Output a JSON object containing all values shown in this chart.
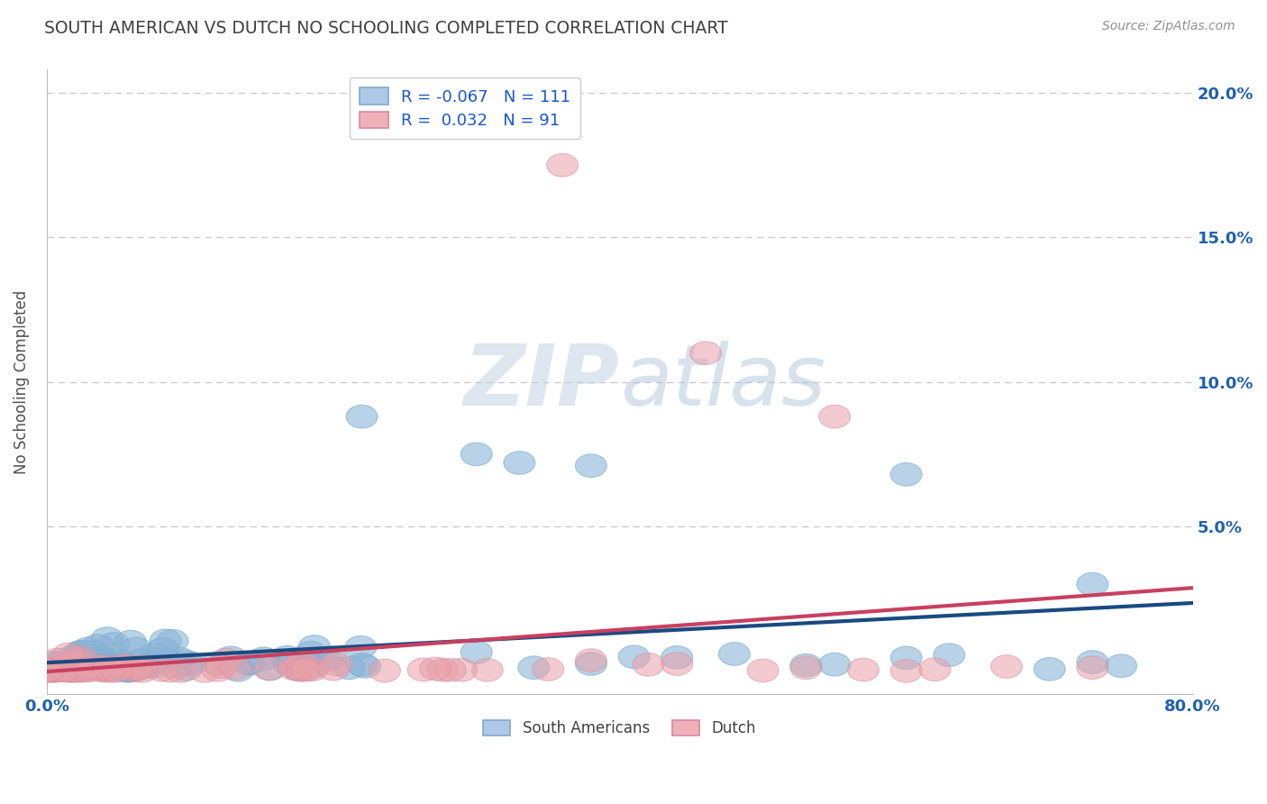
{
  "title": "SOUTH AMERICAN VS DUTCH NO SCHOOLING COMPLETED CORRELATION CHART",
  "source": "Source: ZipAtlas.com",
  "ylabel": "No Schooling Completed",
  "xlim": [
    0.0,
    0.8
  ],
  "ylim": [
    -0.008,
    0.208
  ],
  "yticks": [
    0.0,
    0.05,
    0.1,
    0.15,
    0.2
  ],
  "ytick_labels": [
    "",
    "5.0%",
    "10.0%",
    "15.0%",
    "20.0%"
  ],
  "xticks": [
    0.0,
    0.8
  ],
  "xtick_labels": [
    "0.0%",
    "80.0%"
  ],
  "series_blue": {
    "label": "South Americans",
    "R": -0.067,
    "N": 111,
    "color": "#8ab4d8",
    "edge_color": "#7aabc8",
    "trend_color": "#1a4a80"
  },
  "series_pink": {
    "label": "Dutch",
    "R": 0.032,
    "N": 91,
    "color": "#e8a0a8",
    "edge_color": "#d890a0",
    "trend_color": "#c84060"
  },
  "background_color": "#ffffff",
  "grid_color": "#c8c8c8",
  "title_color": "#404040",
  "source_color": "#909090",
  "watermark_zip_color": "#c8d4e8",
  "watermark_atlas_color": "#b8cce0",
  "legend_color_blue": "#1a56cc",
  "legend_color_pink": "#cc2244",
  "seed": 42
}
